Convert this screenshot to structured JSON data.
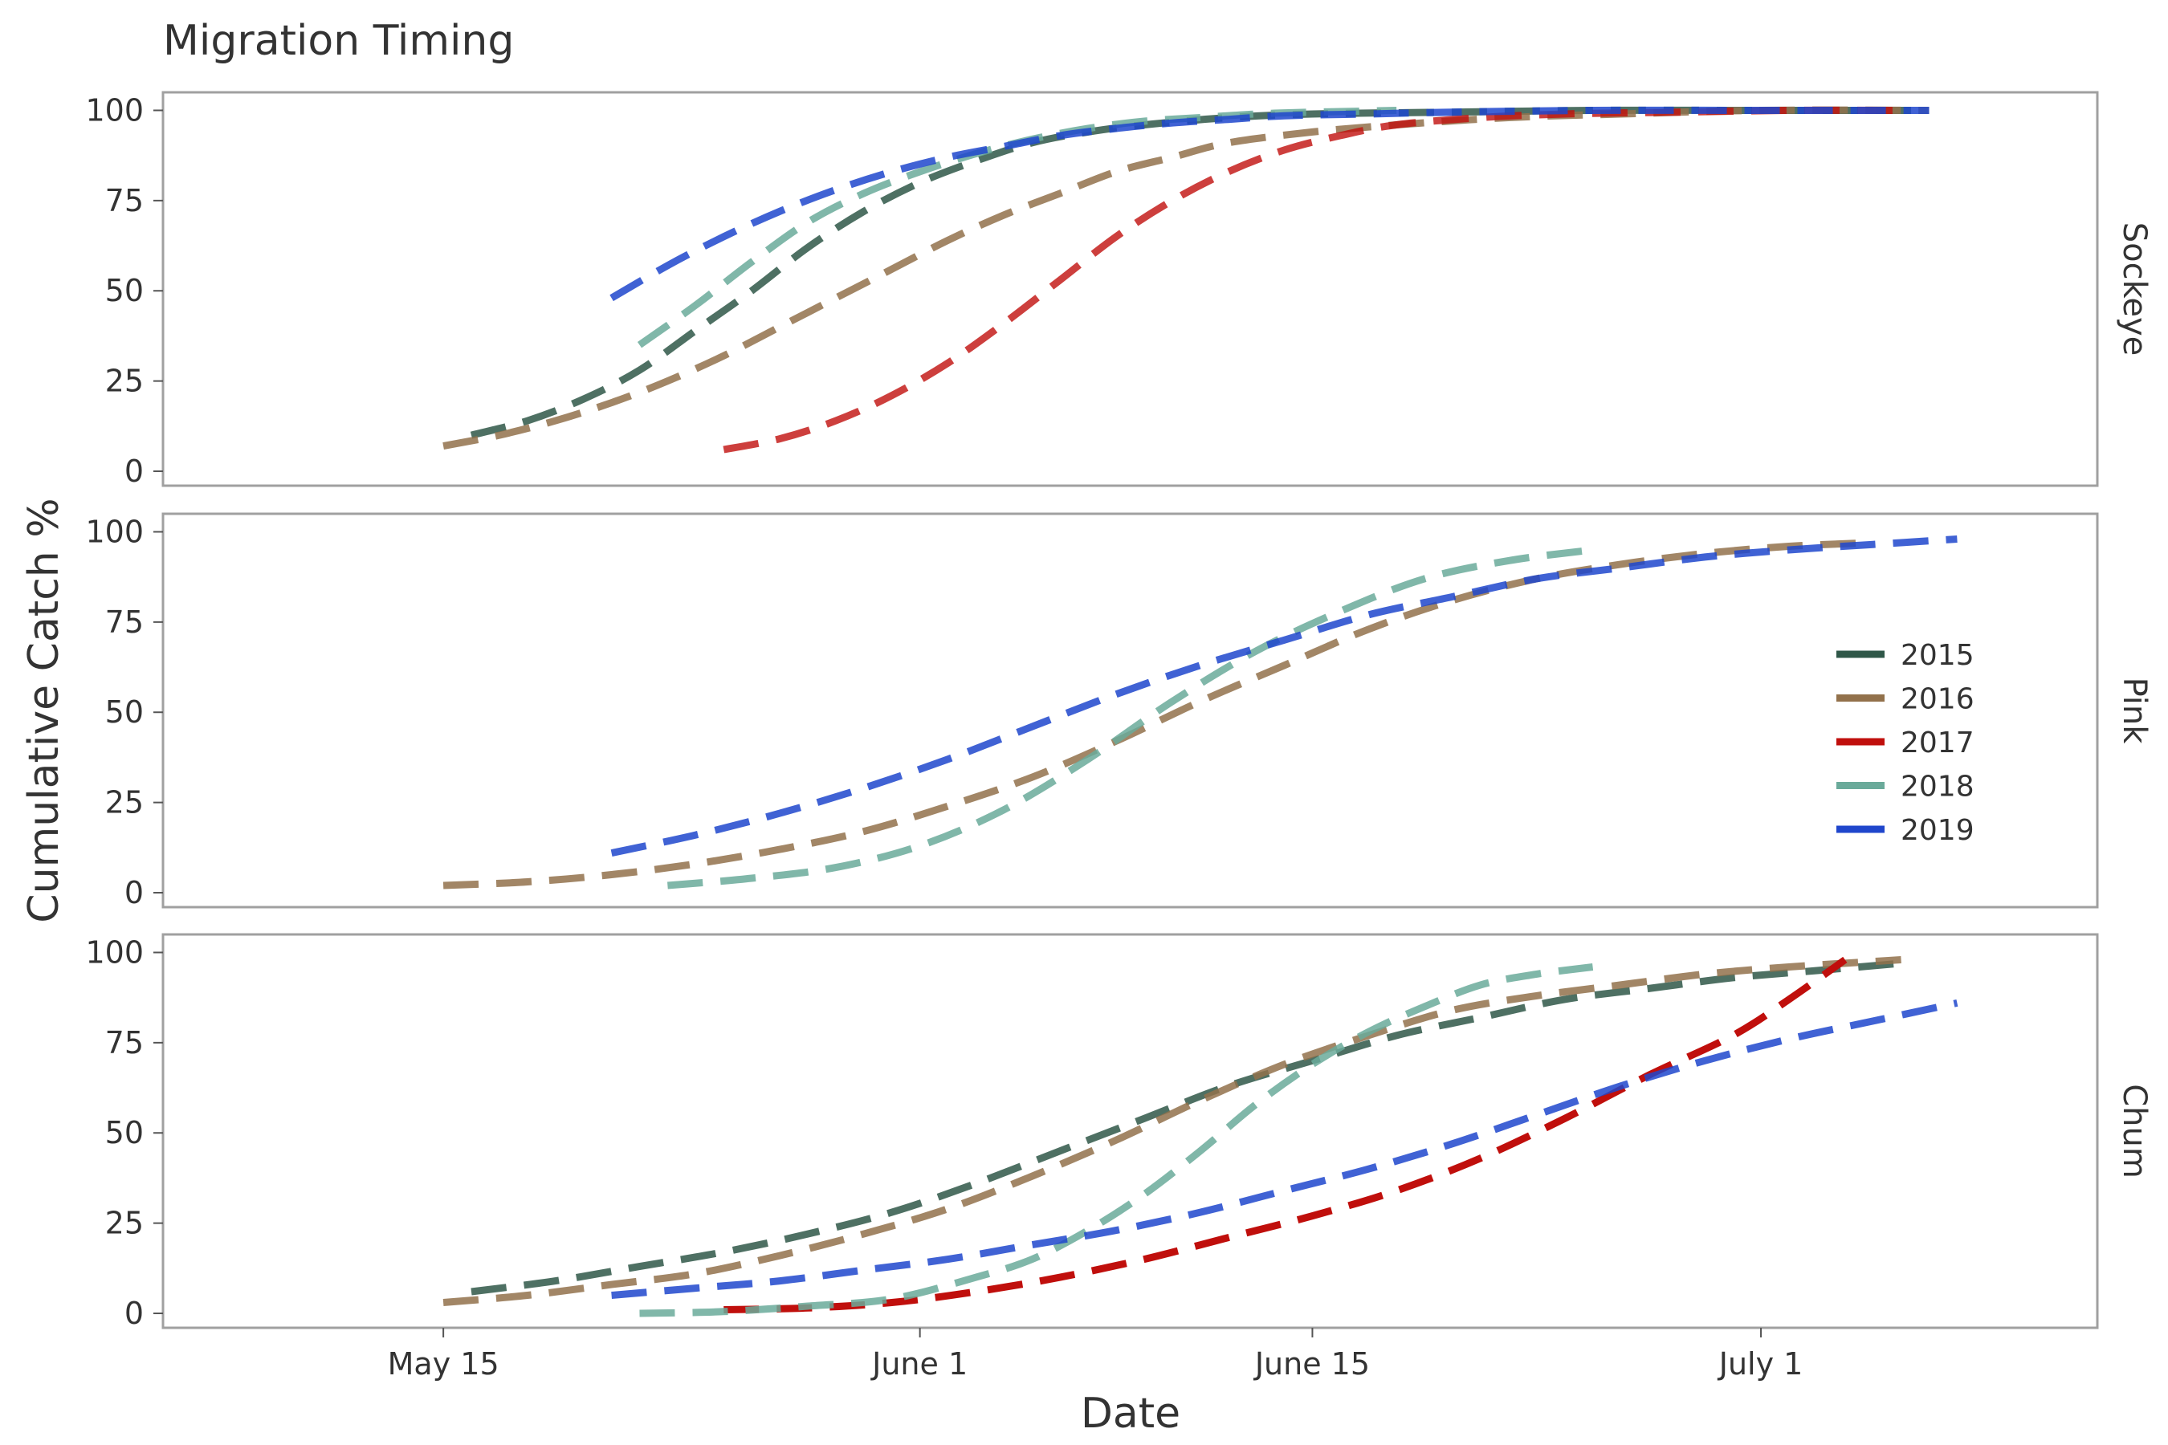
{
  "chart_data": {
    "type": "line",
    "title": "Migration Timing",
    "xlabel": "Date",
    "ylabel": "Cumulative Catch %",
    "x_range": [
      "2020-05-05",
      "2020-07-13"
    ],
    "x_ticks": [
      {
        "date": "2020-05-15",
        "label": "May 15"
      },
      {
        "date": "2020-06-01",
        "label": "June 1"
      },
      {
        "date": "2020-06-15",
        "label": "June 15"
      },
      {
        "date": "2020-07-01",
        "label": "July 1"
      }
    ],
    "ylim": [
      -4,
      105
    ],
    "y_ticks": [
      0,
      25,
      50,
      75,
      100
    ],
    "grid": false,
    "legend": {
      "position": "right",
      "entries": [
        {
          "name": "2015",
          "color": "#2f5748"
        },
        {
          "name": "2016",
          "color": "#92714b"
        },
        {
          "name": "2017",
          "color": "#c00f0c"
        },
        {
          "name": "2018",
          "color": "#6aaa9a"
        },
        {
          "name": "2019",
          "color": "#1f46cc"
        }
      ]
    },
    "panels": [
      {
        "facet": "Sockeye",
        "series": [
          {
            "name": "2015",
            "color": "#2f5748",
            "opacity": 0.85,
            "x": [
              "2020-05-16",
              "2020-05-18",
              "2020-05-20",
              "2020-05-22",
              "2020-05-24",
              "2020-05-26",
              "2020-05-28",
              "2020-05-30",
              "2020-06-01",
              "2020-06-03",
              "2020-06-05",
              "2020-06-07",
              "2020-06-09",
              "2020-06-12",
              "2020-06-15",
              "2020-06-20",
              "2020-06-25",
              "2020-07-01",
              "2020-07-07"
            ],
            "y": [
              10,
              14,
              20,
              28,
              39,
              50,
              62,
              72,
              80,
              86,
              91,
              94,
              96,
              98,
              99,
              99.5,
              100,
              100,
              100
            ]
          },
          {
            "name": "2016",
            "color": "#92714b",
            "opacity": 0.85,
            "x": [
              "2020-05-15",
              "2020-05-17",
              "2020-05-19",
              "2020-05-21",
              "2020-05-23",
              "2020-05-25",
              "2020-05-27",
              "2020-05-29",
              "2020-05-31",
              "2020-06-02",
              "2020-06-04",
              "2020-06-06",
              "2020-06-08",
              "2020-06-10",
              "2020-06-12",
              "2020-06-15",
              "2020-06-18",
              "2020-06-22",
              "2020-06-26",
              "2020-07-01",
              "2020-07-07"
            ],
            "y": [
              7,
              10,
              14,
              19,
              25,
              32,
              40,
              48,
              56,
              64,
              71,
              77,
              83,
              87,
              91,
              94,
              96,
              98,
              99,
              100,
              100
            ]
          },
          {
            "name": "2017",
            "color": "#c00f0c",
            "opacity": 0.8,
            "x": [
              "2020-05-25",
              "2020-05-27",
              "2020-05-29",
              "2020-05-31",
              "2020-06-02",
              "2020-06-04",
              "2020-06-06",
              "2020-06-08",
              "2020-06-10",
              "2020-06-12",
              "2020-06-14",
              "2020-06-16",
              "2020-06-18",
              "2020-06-21",
              "2020-06-24",
              "2020-06-28",
              "2020-07-02",
              "2020-07-06"
            ],
            "y": [
              6,
              9,
              14,
              21,
              30,
              41,
              53,
              65,
              75,
              83,
              89,
              93,
              96,
              98,
              99,
              99.5,
              100,
              100
            ]
          },
          {
            "name": "2018",
            "color": "#6aaa9a",
            "opacity": 0.85,
            "x": [
              "2020-05-22",
              "2020-05-24",
              "2020-05-26",
              "2020-05-28",
              "2020-05-30",
              "2020-06-01",
              "2020-06-03",
              "2020-06-05",
              "2020-06-07",
              "2020-06-09",
              "2020-06-11",
              "2020-06-13",
              "2020-06-15",
              "2020-06-18"
            ],
            "y": [
              35,
              46,
              58,
              69,
              77,
              83,
              88,
              92,
              95,
              97,
              98,
              99,
              99.5,
              100
            ]
          },
          {
            "name": "2019",
            "color": "#1f46cc",
            "opacity": 0.85,
            "x": [
              "2020-05-21",
              "2020-05-23",
              "2020-05-25",
              "2020-05-27",
              "2020-05-29",
              "2020-05-31",
              "2020-06-02",
              "2020-06-04",
              "2020-06-06",
              "2020-06-08",
              "2020-06-10",
              "2020-06-12",
              "2020-06-14",
              "2020-06-17",
              "2020-06-20",
              "2020-06-25",
              "2020-07-01",
              "2020-07-07"
            ],
            "y": [
              48,
              57,
              65,
              72,
              78,
              83,
              87,
              90,
              93,
              95,
              96.5,
              97.5,
              98.5,
              99,
              99.5,
              100,
              100,
              100
            ]
          }
        ]
      },
      {
        "facet": "Pink",
        "series": [
          {
            "name": "2016",
            "color": "#92714b",
            "opacity": 0.85,
            "x": [
              "2020-05-15",
              "2020-05-18",
              "2020-05-21",
              "2020-05-24",
              "2020-05-27",
              "2020-05-30",
              "2020-06-02",
              "2020-06-05",
              "2020-06-08",
              "2020-06-11",
              "2020-06-14",
              "2020-06-17",
              "2020-06-20",
              "2020-06-23",
              "2020-06-26",
              "2020-06-29",
              "2020-07-02",
              "2020-07-05"
            ],
            "y": [
              2,
              3,
              5,
              8,
              12,
              17,
              24,
              32,
              42,
              53,
              63,
              73,
              81,
              87,
              91,
              94,
              96,
              97
            ]
          },
          {
            "name": "2018",
            "color": "#6aaa9a",
            "opacity": 0.85,
            "x": [
              "2020-05-23",
              "2020-05-26",
              "2020-05-29",
              "2020-06-01",
              "2020-06-04",
              "2020-06-07",
              "2020-06-10",
              "2020-06-13",
              "2020-06-16",
              "2020-06-19",
              "2020-06-22",
              "2020-06-25"
            ],
            "y": [
              2,
              4,
              7,
              13,
              23,
              37,
              53,
              67,
              78,
              87,
              92,
              95
            ]
          },
          {
            "name": "2019",
            "color": "#1f46cc",
            "opacity": 0.85,
            "x": [
              "2020-05-21",
              "2020-05-24",
              "2020-05-27",
              "2020-05-30",
              "2020-06-02",
              "2020-06-05",
              "2020-06-08",
              "2020-06-11",
              "2020-06-14",
              "2020-06-17",
              "2020-06-20",
              "2020-06-23",
              "2020-06-26",
              "2020-06-29",
              "2020-07-02",
              "2020-07-05",
              "2020-07-08"
            ],
            "y": [
              11,
              16,
              22,
              29,
              37,
              46,
              55,
              63,
              70,
              77,
              82,
              87,
              90,
              93,
              95,
              96.5,
              98
            ]
          }
        ]
      },
      {
        "facet": "Chum",
        "series": [
          {
            "name": "2015",
            "color": "#2f5748",
            "opacity": 0.85,
            "x": [
              "2020-05-16",
              "2020-05-19",
              "2020-05-22",
              "2020-05-25",
              "2020-05-28",
              "2020-05-31",
              "2020-06-03",
              "2020-06-06",
              "2020-06-09",
              "2020-06-12",
              "2020-06-15",
              "2020-06-18",
              "2020-06-21",
              "2020-06-24",
              "2020-06-27",
              "2020-06-30",
              "2020-07-03",
              "2020-07-06"
            ],
            "y": [
              6,
              9,
              13,
              17,
              22,
              28,
              36,
              45,
              54,
              63,
              70,
              77,
              82,
              87,
              90,
              93,
              95,
              97
            ]
          },
          {
            "name": "2016",
            "color": "#92714b",
            "opacity": 0.85,
            "x": [
              "2020-05-15",
              "2020-05-18",
              "2020-05-21",
              "2020-05-24",
              "2020-05-27",
              "2020-05-30",
              "2020-06-02",
              "2020-06-05",
              "2020-06-08",
              "2020-06-11",
              "2020-06-14",
              "2020-06-17",
              "2020-06-20",
              "2020-06-23",
              "2020-06-26",
              "2020-06-29",
              "2020-07-02",
              "2020-07-06"
            ],
            "y": [
              3,
              5,
              8,
              11,
              16,
              22,
              29,
              38,
              48,
              59,
              69,
              77,
              84,
              88,
              91,
              94,
              96,
              98
            ]
          },
          {
            "name": "2017",
            "color": "#c00f0c",
            "opacity": 1.0,
            "x": [
              "2020-05-25",
              "2020-05-28",
              "2020-05-31",
              "2020-06-03",
              "2020-06-06",
              "2020-06-09",
              "2020-06-12",
              "2020-06-15",
              "2020-06-18",
              "2020-06-21",
              "2020-06-24",
              "2020-06-27",
              "2020-06-30",
              "2020-07-02",
              "2020-07-04"
            ],
            "y": [
              1,
              1.5,
              3,
              6,
              10,
              15,
              21,
              27,
              34,
              43,
              54,
              66,
              77,
              87,
              98
            ]
          },
          {
            "name": "2018",
            "color": "#6aaa9a",
            "opacity": 0.85,
            "x": [
              "2020-05-22",
              "2020-05-25",
              "2020-05-28",
              "2020-05-31",
              "2020-06-03",
              "2020-06-05",
              "2020-06-07",
              "2020-06-09",
              "2020-06-11",
              "2020-06-13",
              "2020-06-15",
              "2020-06-17",
              "2020-06-19",
              "2020-06-21",
              "2020-06-23",
              "2020-06-25"
            ],
            "y": [
              0,
              0.5,
              2,
              4,
              10,
              15,
              23,
              33,
              45,
              58,
              69,
              78,
              85,
              91,
              94,
              96
            ]
          },
          {
            "name": "2019",
            "color": "#1f46cc",
            "opacity": 0.85,
            "x": [
              "2020-05-21",
              "2020-05-24",
              "2020-05-27",
              "2020-05-30",
              "2020-06-02",
              "2020-06-05",
              "2020-06-08",
              "2020-06-11",
              "2020-06-14",
              "2020-06-17",
              "2020-06-20",
              "2020-06-23",
              "2020-06-26",
              "2020-06-29",
              "2020-07-02",
              "2020-07-05",
              "2020-07-08"
            ],
            "y": [
              5,
              7,
              9,
              12,
              15,
              19,
              23,
              28,
              34,
              40,
              47,
              55,
              63,
              70,
              76,
              81,
              86
            ]
          }
        ]
      }
    ]
  }
}
